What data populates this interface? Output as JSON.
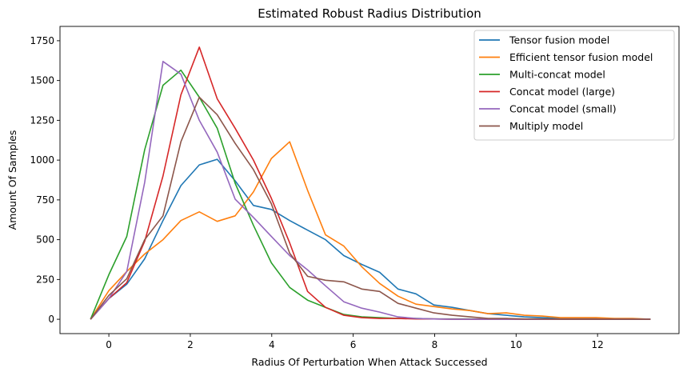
{
  "chart_data": {
    "type": "line",
    "title": "Estimated Robust Radius Distribution",
    "xlabel": "Radius Of Perturbation When Attack Successed",
    "ylabel": "Amount Of Samples",
    "xlim": [
      -1.2,
      14.0
    ],
    "ylim": [
      -90,
      1840
    ],
    "xticks": [
      0,
      2,
      4,
      6,
      8,
      10,
      12
    ],
    "yticks": [
      0,
      250,
      500,
      750,
      1000,
      1250,
      1500,
      1750
    ],
    "grid": false,
    "legend_position": "top-right",
    "x": [
      -0.45,
      0.0,
      0.44,
      0.88,
      1.33,
      1.77,
      2.22,
      2.66,
      3.1,
      3.55,
      3.99,
      4.44,
      4.88,
      5.32,
      5.77,
      6.21,
      6.65,
      7.1,
      7.54,
      7.98,
      8.43,
      8.87,
      9.31,
      9.76,
      10.2,
      10.64,
      11.09,
      11.53,
      11.97,
      12.42,
      12.86,
      13.3
    ],
    "series": [
      {
        "name": "Tensor fusion model",
        "color": "#1f77b4",
        "values": [
          0,
          130,
          220,
          380,
          620,
          840,
          970,
          1005,
          870,
          715,
          690,
          620,
          560,
          500,
          400,
          345,
          295,
          190,
          160,
          90,
          75,
          55,
          35,
          25,
          15,
          10,
          5,
          5,
          5,
          3,
          2,
          0
        ]
      },
      {
        "name": "Efficient tensor fusion model",
        "color": "#ff7f0e",
        "values": [
          0,
          180,
          300,
          410,
          500,
          620,
          675,
          615,
          650,
          800,
          1010,
          1115,
          810,
          530,
          460,
          330,
          225,
          145,
          95,
          80,
          65,
          55,
          35,
          40,
          25,
          20,
          10,
          10,
          10,
          5,
          5,
          0
        ]
      },
      {
        "name": "Multi-concat model",
        "color": "#2ca02c",
        "values": [
          0,
          280,
          520,
          1065,
          1470,
          1565,
          1395,
          1200,
          855,
          590,
          355,
          200,
          120,
          75,
          30,
          15,
          10,
          5,
          5,
          2,
          2,
          2,
          0,
          0,
          0,
          0,
          0,
          0,
          0,
          0,
          0,
          0
        ]
      },
      {
        "name": "Concat model (large)",
        "color": "#d62728",
        "values": [
          0,
          130,
          230,
          490,
          900,
          1410,
          1710,
          1385,
          1200,
          1000,
          760,
          480,
          175,
          75,
          25,
          10,
          5,
          5,
          2,
          2,
          0,
          0,
          0,
          0,
          0,
          0,
          0,
          0,
          0,
          0,
          0,
          0
        ]
      },
      {
        "name": "Concat model (small)",
        "color": "#9467bd",
        "values": [
          0,
          130,
          300,
          860,
          1620,
          1540,
          1250,
          1050,
          755,
          640,
          520,
          400,
          310,
          210,
          110,
          70,
          45,
          15,
          5,
          2,
          0,
          0,
          0,
          0,
          0,
          0,
          0,
          0,
          0,
          0,
          0,
          0
        ]
      },
      {
        "name": "Multiply model",
        "color": "#8c564b",
        "values": [
          0,
          150,
          255,
          500,
          650,
          1115,
          1395,
          1285,
          1105,
          940,
          725,
          415,
          270,
          245,
          235,
          190,
          175,
          100,
          70,
          40,
          25,
          15,
          5,
          5,
          2,
          2,
          0,
          0,
          0,
          0,
          0,
          0
        ]
      }
    ]
  }
}
